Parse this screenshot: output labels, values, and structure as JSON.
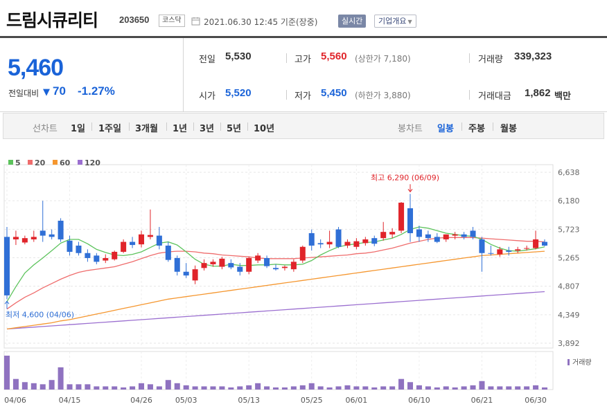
{
  "header": {
    "company_name": "드림시큐리티",
    "code": "203650",
    "market": "코스닥",
    "timestamp": "2021.06.30 12:45  기준(장중)",
    "realtime_label": "실시간",
    "company_info_label": "기업개요"
  },
  "quote": {
    "current_price": "5,460",
    "change_label": "전일대비",
    "change_amount": "70",
    "change_rate": "-1.27%",
    "prev_close_label": "전일",
    "prev_close": "5,530",
    "high_label": "고가",
    "high": "5,560",
    "upper_limit": "(상한가 7,180)",
    "volume_label": "거래량",
    "volume": "339,323",
    "open_label": "시가",
    "open": "5,520",
    "low_label": "저가",
    "low": "5,450",
    "lower_limit": "(하한가 3,880)",
    "amount_label": "거래대금",
    "amount": "1,862",
    "amount_unit": "백만"
  },
  "periods": {
    "line_label": "선차트",
    "line_options": [
      "1일",
      "1주일",
      "3개월",
      "1년",
      "3년",
      "5년",
      "10년"
    ],
    "candle_label": "봉차트",
    "candle_options": [
      "일봉",
      "주봉",
      "월봉"
    ],
    "active_candle": "일봉"
  },
  "colors": {
    "up": "#e0242a",
    "down": "#2f6fd6",
    "ma5": "#5cc35c",
    "ma20": "#ef6c6c",
    "ma60": "#f5962e",
    "ma120": "#9b6fd0",
    "volume": "#8f72c0"
  },
  "chart_data": {
    "type": "candlestick",
    "legend": [
      {
        "name": "5",
        "color": "#5cc35c"
      },
      {
        "name": "20",
        "color": "#ef6c6c"
      },
      {
        "name": "60",
        "color": "#f5962e"
      },
      {
        "name": "120",
        "color": "#9b6fd0"
      }
    ],
    "y_ticks": [
      "6,638",
      "6,180",
      "5,723",
      "5,265",
      "4,807",
      "4,349",
      "3,892"
    ],
    "ylim": [
      3892,
      6638
    ],
    "x_labels": [
      "04/06",
      "04/15",
      "04/26",
      "05/03",
      "05/13",
      "05/25",
      "06/01",
      "06/10",
      "06/21",
      "06/30"
    ],
    "x_label_index": [
      0,
      7,
      15,
      20,
      27,
      34,
      39,
      46,
      53,
      59
    ],
    "annotation_high": "최고 6,290 (06/09)",
    "annotation_low": "최저 4,600 (04/06)",
    "volume_label": "거래량",
    "candles": [
      [
        5600,
        5760,
        4600,
        4660
      ],
      [
        5560,
        5700,
        5470,
        5600
      ],
      [
        5510,
        5620,
        5480,
        5580
      ],
      [
        5560,
        5700,
        5520,
        5600
      ],
      [
        5700,
        6180,
        5520,
        5620
      ],
      [
        5640,
        5720,
        5560,
        5600
      ],
      [
        5860,
        5900,
        5520,
        5560
      ],
      [
        5540,
        5620,
        5300,
        5360
      ],
      [
        5460,
        5520,
        5300,
        5340
      ],
      [
        5340,
        5400,
        5200,
        5260
      ],
      [
        5300,
        5340,
        5160,
        5200
      ],
      [
        5220,
        5320,
        5180,
        5260
      ],
      [
        5240,
        5380,
        5220,
        5360
      ],
      [
        5360,
        5560,
        5340,
        5520
      ],
      [
        5520,
        5600,
        5420,
        5470
      ],
      [
        5480,
        5700,
        5430,
        5640
      ],
      [
        5600,
        6040,
        5560,
        5630
      ],
      [
        5620,
        5760,
        5400,
        5460
      ],
      [
        5460,
        5520,
        5200,
        5230
      ],
      [
        5260,
        5300,
        4980,
        5040
      ],
      [
        5040,
        5180,
        4940,
        4980
      ],
      [
        4900,
        5140,
        4840,
        5080
      ],
      [
        5100,
        5240,
        5060,
        5180
      ],
      [
        5160,
        5240,
        5120,
        5200
      ],
      [
        5120,
        5280,
        5080,
        5250
      ],
      [
        5180,
        5240,
        5080,
        5110
      ],
      [
        5120,
        5180,
        4980,
        5040
      ],
      [
        5040,
        5280,
        5000,
        5260
      ],
      [
        5220,
        5340,
        5180,
        5300
      ],
      [
        5260,
        5300,
        5100,
        5130
      ],
      [
        5100,
        5160,
        5060,
        5080
      ],
      [
        5100,
        5140,
        5060,
        5120
      ],
      [
        5080,
        5240,
        5040,
        5200
      ],
      [
        5220,
        5460,
        5180,
        5440
      ],
      [
        5660,
        5720,
        5380,
        5460
      ],
      [
        5500,
        5560,
        5420,
        5480
      ],
      [
        5480,
        5700,
        5420,
        5520
      ],
      [
        5720,
        5760,
        5420,
        5440
      ],
      [
        5460,
        5560,
        5420,
        5520
      ],
      [
        5440,
        5580,
        5400,
        5530
      ],
      [
        5500,
        5600,
        5460,
        5560
      ],
      [
        5580,
        5620,
        5450,
        5490
      ],
      [
        5580,
        5840,
        5540,
        5680
      ],
      [
        5640,
        5740,
        5580,
        5680
      ],
      [
        5700,
        6160,
        5660,
        6150
      ],
      [
        6060,
        6290,
        5520,
        5660
      ],
      [
        5720,
        5780,
        5520,
        5600
      ],
      [
        5640,
        5700,
        5520,
        5580
      ],
      [
        5600,
        5660,
        5500,
        5520
      ],
      [
        5560,
        5640,
        5520,
        5640
      ],
      [
        5620,
        5680,
        5560,
        5640
      ],
      [
        5640,
        5680,
        5560,
        5600
      ],
      [
        5700,
        5760,
        5560,
        5600
      ],
      [
        5560,
        5600,
        5040,
        5340
      ],
      [
        5340,
        5460,
        5300,
        5330
      ],
      [
        5320,
        5440,
        5280,
        5400
      ],
      [
        5380,
        5440,
        5300,
        5360
      ],
      [
        5380,
        5440,
        5340,
        5400
      ],
      [
        5420,
        5460,
        5380,
        5420
      ],
      [
        5420,
        5700,
        5400,
        5560
      ],
      [
        5520,
        5560,
        5450,
        5460
      ]
    ],
    "volumes": [
      32,
      10,
      7,
      6,
      5,
      9,
      21,
      5,
      5,
      5,
      3,
      3,
      3,
      2,
      3,
      6,
      5,
      3,
      9,
      6,
      4,
      3,
      3,
      3,
      3,
      2,
      3,
      4,
      6,
      3,
      2,
      2,
      3,
      4,
      6,
      3,
      2,
      3,
      4,
      3,
      3,
      2,
      3,
      3,
      10,
      7,
      4,
      3,
      2,
      3,
      2,
      3,
      4,
      8,
      3,
      3,
      3,
      3,
      3,
      4,
      2
    ],
    "ma5": [
      4560,
      4800,
      5020,
      5150,
      5260,
      5380,
      5500,
      5560,
      5560,
      5490,
      5400,
      5350,
      5310,
      5300,
      5320,
      5360,
      5430,
      5500,
      5520,
      5470,
      5360,
      5240,
      5160,
      5130,
      5130,
      5160,
      5140,
      5140,
      5150,
      5150,
      5160,
      5150,
      5150,
      5160,
      5220,
      5310,
      5380,
      5440,
      5470,
      5490,
      5510,
      5520,
      5550,
      5580,
      5640,
      5720,
      5760,
      5740,
      5700,
      5660,
      5640,
      5620,
      5610,
      5560,
      5480,
      5420,
      5380,
      5370,
      5390,
      5410,
      5440
    ],
    "ma20": [
      4440,
      4540,
      4630,
      4700,
      4780,
      4850,
      4920,
      4980,
      5030,
      5060,
      5080,
      5100,
      5120,
      5160,
      5200,
      5250,
      5300,
      5340,
      5360,
      5370,
      5370,
      5360,
      5340,
      5330,
      5310,
      5300,
      5290,
      5280,
      5260,
      5250,
      5250,
      5250,
      5250,
      5260,
      5270,
      5280,
      5290,
      5300,
      5310,
      5330,
      5340,
      5360,
      5390,
      5420,
      5460,
      5500,
      5530,
      5560,
      5580,
      5590,
      5590,
      5590,
      5590,
      5580,
      5570,
      5560,
      5550,
      5540,
      5530,
      5530,
      5520
    ],
    "ma60": [
      4120,
      4140,
      4160,
      4180,
      4200,
      4220,
      4250,
      4270,
      4300,
      4330,
      4360,
      4390,
      4420,
      4450,
      4480,
      4510,
      4540,
      4570,
      4600,
      4620,
      4640,
      4660,
      4680,
      4700,
      4720,
      4740,
      4760,
      4780,
      4800,
      4820,
      4840,
      4860,
      4880,
      4900,
      4920,
      4940,
      4960,
      4980,
      5000,
      5020,
      5040,
      5060,
      5080,
      5100,
      5120,
      5140,
      5160,
      5180,
      5200,
      5220,
      5240,
      5260,
      5280,
      5300,
      5310,
      5320,
      5330,
      5340,
      5350,
      5360,
      5370
    ],
    "ma120": [
      4120,
      4130,
      4140,
      4150,
      4160,
      4170,
      4180,
      4190,
      4200,
      4210,
      4220,
      4230,
      4240,
      4250,
      4260,
      4270,
      4280,
      4290,
      4300,
      4310,
      4320,
      4330,
      4340,
      4350,
      4360,
      4370,
      4380,
      4390,
      4400,
      4410,
      4420,
      4430,
      4440,
      4450,
      4460,
      4470,
      4480,
      4490,
      4500,
      4510,
      4520,
      4530,
      4540,
      4550,
      4560,
      4570,
      4580,
      4590,
      4600,
      4610,
      4620,
      4630,
      4640,
      4650,
      4660,
      4670,
      4680,
      4690,
      4700,
      4710,
      4720
    ]
  }
}
